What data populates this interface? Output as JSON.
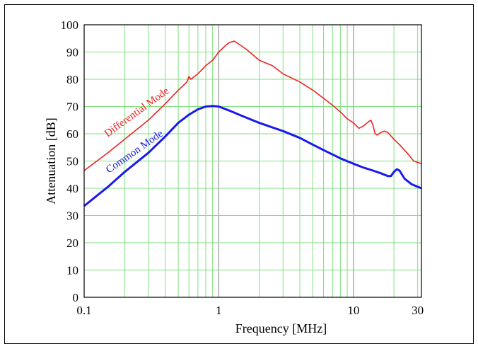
{
  "chart_data": {
    "type": "line",
    "xscale": "log",
    "xlim": [
      0.1,
      32
    ],
    "ylim": [
      0,
      100
    ],
    "xlabel": "Frequency [MHz]",
    "ylabel": "Attenuation [dB]",
    "grid": true,
    "legend": "inline-labels",
    "x_tick_labels": [
      {
        "value": 0.1,
        "label": "0.1"
      },
      {
        "value": 1,
        "label": "1"
      },
      {
        "value": 10,
        "label": "10"
      },
      {
        "value": 30,
        "label": "30"
      }
    ],
    "y_tick_labels": [
      "0",
      "10",
      "20",
      "30",
      "40",
      "50",
      "60",
      "70",
      "80",
      "90",
      "100"
    ],
    "colors": {
      "grid": "#7fe07f",
      "decade": "#999999",
      "axis": "#000000"
    },
    "series": [
      {
        "name": "Differential Mode",
        "color": "#ee2222",
        "points": [
          [
            0.1,
            46.5
          ],
          [
            0.15,
            53
          ],
          [
            0.2,
            58
          ],
          [
            0.3,
            65
          ],
          [
            0.4,
            71
          ],
          [
            0.5,
            76
          ],
          [
            0.58,
            79
          ],
          [
            0.6,
            81
          ],
          [
            0.62,
            80
          ],
          [
            0.7,
            82
          ],
          [
            0.8,
            85
          ],
          [
            0.9,
            87
          ],
          [
            1.0,
            90
          ],
          [
            1.1,
            92
          ],
          [
            1.2,
            93.5
          ],
          [
            1.3,
            94
          ],
          [
            1.4,
            93
          ],
          [
            1.6,
            91
          ],
          [
            2.0,
            87
          ],
          [
            2.5,
            85
          ],
          [
            3.0,
            82
          ],
          [
            4.0,
            79
          ],
          [
            5.0,
            76
          ],
          [
            6.0,
            73
          ],
          [
            7.0,
            70.5
          ],
          [
            8.0,
            68
          ],
          [
            9.0,
            65.5
          ],
          [
            10.0,
            64
          ],
          [
            11.0,
            62
          ],
          [
            12.0,
            63
          ],
          [
            13.0,
            64.5
          ],
          [
            13.5,
            65
          ],
          [
            14.0,
            63
          ],
          [
            14.5,
            60
          ],
          [
            15.0,
            59.5
          ],
          [
            16.0,
            60.5
          ],
          [
            17.0,
            61
          ],
          [
            18.0,
            60.5
          ],
          [
            20.0,
            58
          ],
          [
            22.0,
            56
          ],
          [
            25.0,
            53
          ],
          [
            28.0,
            50
          ],
          [
            32.0,
            49
          ]
        ]
      },
      {
        "name": "Common Mode",
        "color": "#1a1aee",
        "points": [
          [
            0.1,
            33.5
          ],
          [
            0.15,
            40.5
          ],
          [
            0.2,
            46
          ],
          [
            0.3,
            53
          ],
          [
            0.4,
            59
          ],
          [
            0.5,
            64
          ],
          [
            0.6,
            67
          ],
          [
            0.7,
            69
          ],
          [
            0.8,
            70
          ],
          [
            0.9,
            70.2
          ],
          [
            1.0,
            70
          ],
          [
            1.2,
            68.5
          ],
          [
            1.5,
            66.5
          ],
          [
            2.0,
            64
          ],
          [
            3.0,
            61
          ],
          [
            4.0,
            58.5
          ],
          [
            5.0,
            56
          ],
          [
            6.0,
            54
          ],
          [
            8.0,
            51
          ],
          [
            10.0,
            49
          ],
          [
            12.0,
            47.5
          ],
          [
            14.0,
            46.5
          ],
          [
            16.0,
            45.5
          ],
          [
            18.0,
            44.5
          ],
          [
            19.0,
            44.5
          ],
          [
            20.0,
            46
          ],
          [
            21.0,
            47
          ],
          [
            22.0,
            46.5
          ],
          [
            24.0,
            43.5
          ],
          [
            27.0,
            41.5
          ],
          [
            32.0,
            40
          ]
        ]
      }
    ]
  }
}
